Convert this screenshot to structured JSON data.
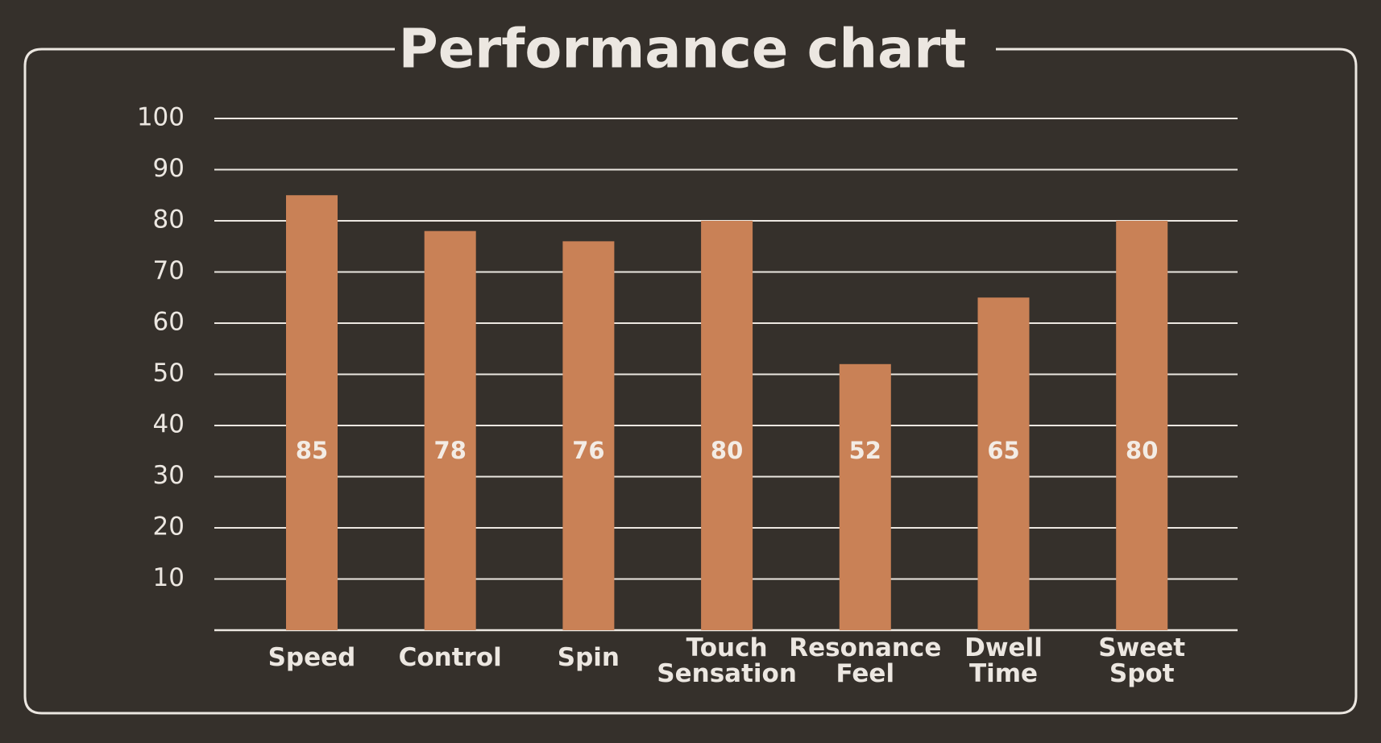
{
  "colors": {
    "background": "#35302b",
    "frame": "#ece7e1",
    "text": "#ece7e1",
    "grid": "#ece7e1",
    "bar": "#c98156",
    "bar_label": "#f3ece5"
  },
  "chart_data": {
    "type": "bar",
    "title": "Performance chart",
    "xlabel": "",
    "ylabel": "",
    "categories": [
      "Speed",
      "Control",
      "Spin",
      "Touch Sensation",
      "Resonance Feel",
      "Dwell Time",
      "Sweet Spot"
    ],
    "series": [
      {
        "values": [
          85,
          78,
          76,
          80,
          52,
          65,
          80
        ]
      }
    ],
    "data_labels": [
      "85",
      "78",
      "76",
      "80",
      "52",
      "65",
      "80"
    ],
    "ylim": [
      0,
      100
    ],
    "yticks": [
      10,
      20,
      30,
      40,
      50,
      60,
      70,
      80,
      90,
      100
    ],
    "ytick_labels": [
      "10",
      "20",
      "30",
      "40",
      "50",
      "60",
      "70",
      "80",
      "90",
      "100"
    ],
    "grid": true,
    "legend": "none"
  }
}
